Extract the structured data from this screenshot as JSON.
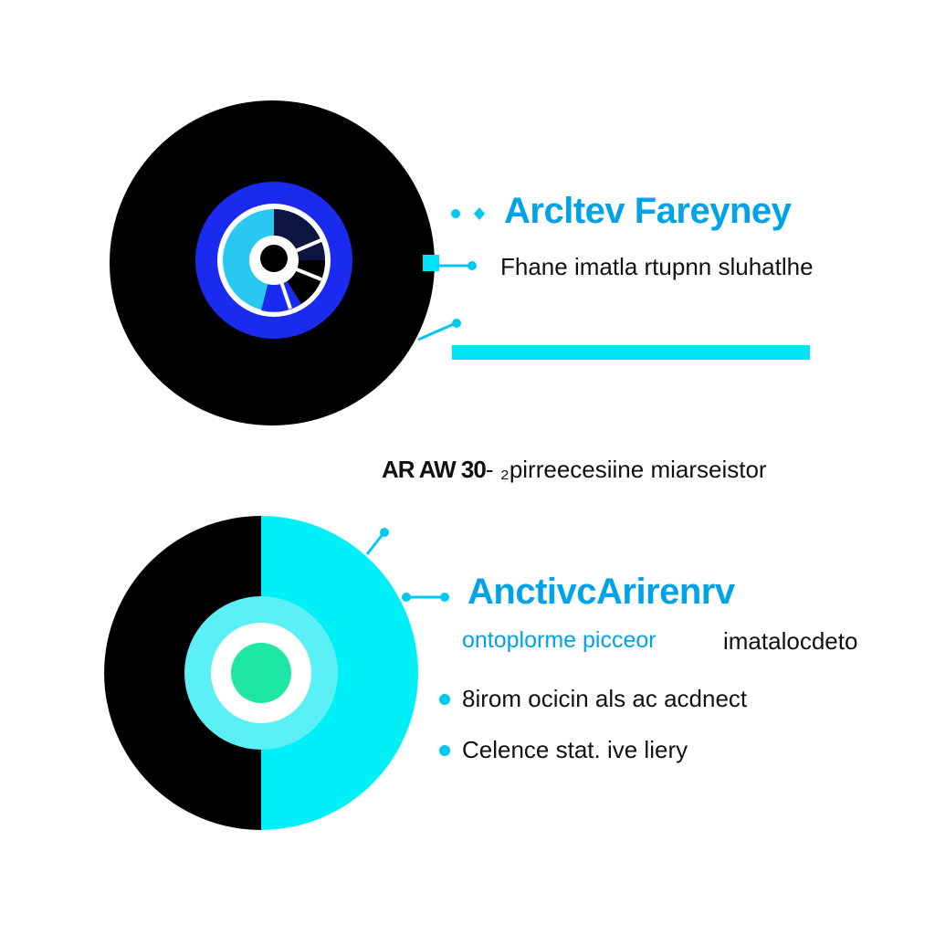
{
  "colors": {
    "black": "#000000",
    "cyan": "#00e5f5",
    "cyan_light": "#5af0f6",
    "cyan_text": "#00a3e8",
    "blue": "#1a2bef",
    "light_blue": "#29c8f0",
    "mint": "#1ee6a4",
    "white": "#ffffff",
    "text_dark": "#111111"
  },
  "icons": [
    "disc-icon-top",
    "disc-icon-bottom",
    "bullet-dot",
    "connector-dot"
  ],
  "top": {
    "title": "Arcltev Fareyney",
    "subtitle": "Fhane imatla rtupnn sluhatlhe"
  },
  "middle": {
    "label_strong": "AR AW 30",
    "label_rest": "- ₂pirreecesiine miarseistor"
  },
  "bottom": {
    "title": "AnctivcArirenrv",
    "subtitle_colored": "ontoplorme picceor",
    "subtitle_plain": "imatalocdeto",
    "bullets": [
      "8irom ocicin als ac acdnect",
      "Celence stat. ive liery"
    ]
  }
}
